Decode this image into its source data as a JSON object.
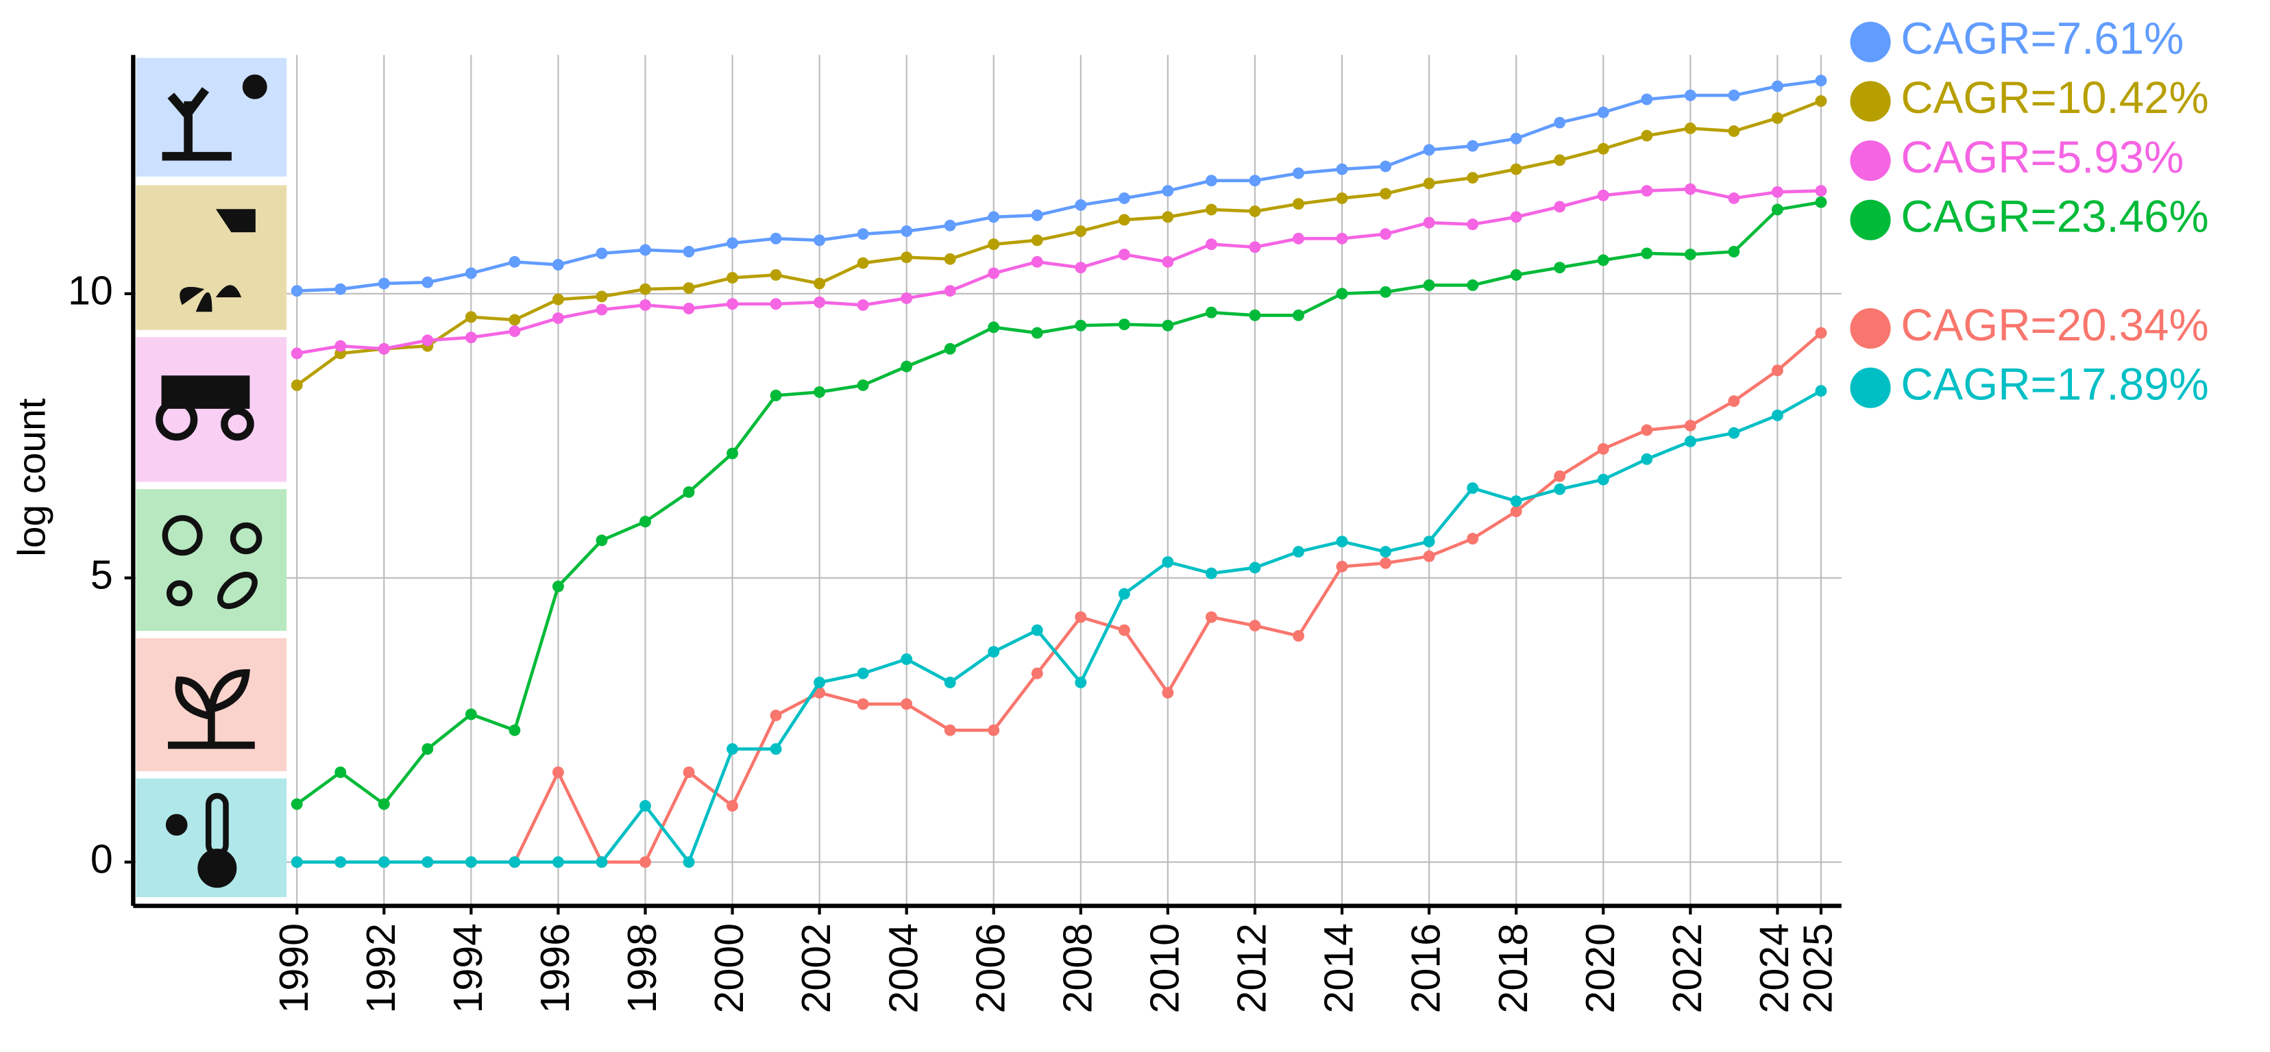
{
  "chart_data": {
    "type": "line",
    "y_label": "log count",
    "x": [
      1990,
      1991,
      1992,
      1993,
      1994,
      1995,
      1996,
      1997,
      1998,
      1999,
      2000,
      2001,
      2002,
      2003,
      2004,
      2005,
      2006,
      2007,
      2008,
      2009,
      2010,
      2011,
      2012,
      2013,
      2014,
      2015,
      2016,
      2017,
      2018,
      2019,
      2020,
      2021,
      2022,
      2023,
      2024,
      2025
    ],
    "xlim": [
      1986.24,
      2025.47
    ],
    "xticks": [
      1990,
      1992,
      1994,
      1996,
      1998,
      2000,
      2002,
      2004,
      2006,
      2008,
      2010,
      2012,
      2014,
      2016,
      2018,
      2020,
      2022,
      2024,
      2025
    ],
    "ylim": [
      -0.77,
      14.2
    ],
    "yticks": [
      0,
      5,
      10
    ],
    "grid": true,
    "series": [
      {
        "name": "CAGR=7.61%",
        "color": "#619cff",
        "values": [
          10.05,
          10.08,
          10.18,
          10.2,
          10.36,
          10.56,
          10.51,
          10.71,
          10.77,
          10.74,
          10.89,
          10.97,
          10.94,
          11.05,
          11.1,
          11.2,
          11.35,
          11.38,
          11.56,
          11.68,
          11.81,
          11.99,
          11.99,
          12.12,
          12.19,
          12.24,
          12.53,
          12.6,
          12.73,
          13.01,
          13.19,
          13.42,
          13.49,
          13.49,
          13.65,
          13.75
        ]
      },
      {
        "name": "CAGR=10.42%",
        "color": "#b79f00",
        "values": [
          8.39,
          8.95,
          9.03,
          9.08,
          9.59,
          9.54,
          9.9,
          9.95,
          10.08,
          10.1,
          10.28,
          10.33,
          10.18,
          10.54,
          10.64,
          10.61,
          10.87,
          10.94,
          11.1,
          11.3,
          11.35,
          11.48,
          11.45,
          11.58,
          11.68,
          11.76,
          11.94,
          12.04,
          12.19,
          12.35,
          12.55,
          12.78,
          12.91,
          12.86,
          13.09,
          13.39
        ]
      },
      {
        "name": "CAGR=5.93%",
        "color": "#f564e3",
        "values": [
          8.95,
          9.08,
          9.03,
          9.18,
          9.23,
          9.34,
          9.57,
          9.72,
          9.8,
          9.74,
          9.82,
          9.82,
          9.85,
          9.8,
          9.92,
          10.05,
          10.36,
          10.56,
          10.46,
          10.69,
          10.56,
          10.87,
          10.82,
          10.97,
          10.97,
          11.05,
          11.25,
          11.22,
          11.35,
          11.53,
          11.73,
          11.81,
          11.84,
          11.68,
          11.79,
          11.81
        ]
      },
      {
        "name": "CAGR=23.46%",
        "color": "#00ba38",
        "values": [
          1.02,
          1.58,
          1.02,
          1.99,
          2.6,
          2.32,
          4.85,
          5.66,
          5.99,
          6.51,
          7.19,
          8.21,
          8.27,
          8.39,
          8.72,
          9.03,
          9.41,
          9.31,
          9.44,
          9.46,
          9.44,
          9.67,
          9.62,
          9.62,
          10.0,
          10.03,
          10.15,
          10.15,
          10.33,
          10.46,
          10.59,
          10.71,
          10.69,
          10.74,
          11.48,
          11.61
        ]
      },
      {
        "name": "CAGR=20.34%",
        "color": "#f8766d",
        "values": [
          0,
          0,
          0,
          0,
          0,
          0,
          1.58,
          0,
          0,
          1.58,
          0.99,
          2.58,
          2.98,
          2.78,
          2.78,
          2.32,
          2.32,
          3.32,
          4.31,
          4.08,
          2.98,
          4.31,
          4.16,
          3.98,
          5.2,
          5.26,
          5.38,
          5.69,
          6.17,
          6.79,
          7.27,
          7.6,
          7.68,
          8.11,
          8.65,
          9.31
        ]
      },
      {
        "name": "CAGR=17.89%",
        "color": "#00bfc4",
        "values": [
          0,
          0,
          0,
          0,
          0,
          0,
          0,
          0,
          0.99,
          0,
          1.99,
          1.99,
          3.16,
          3.32,
          3.57,
          3.16,
          3.7,
          4.08,
          3.16,
          4.72,
          5.28,
          5.08,
          5.18,
          5.46,
          5.64,
          5.46,
          5.64,
          6.58,
          6.35,
          6.56,
          6.73,
          7.09,
          7.4,
          7.55,
          7.86,
          8.29
        ]
      }
    ]
  }
}
